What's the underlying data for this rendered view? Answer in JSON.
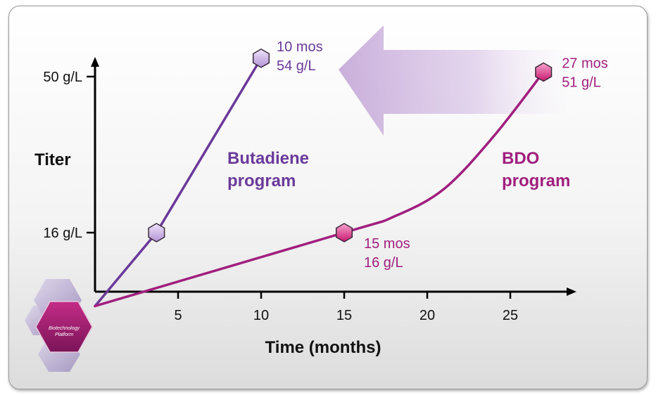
{
  "chart_data": {
    "type": "line",
    "xlabel": "Time (months)",
    "ylabel": "Titer",
    "xlim": [
      0,
      28
    ],
    "ylim": [
      0,
      60
    ],
    "x_ticks": [
      5,
      10,
      15,
      20,
      25
    ],
    "y_ticks": [
      {
        "value": 16,
        "label": "16 g/L"
      },
      {
        "value": 50,
        "label": "50 g/L"
      }
    ],
    "series": [
      {
        "name": "Butadiene program",
        "name_lines": [
          "Butadiene",
          "program"
        ],
        "color": "#6a3a9a",
        "marker_color": "#c9aee6",
        "points": [
          [
            0,
            0
          ],
          [
            3.7,
            16
          ],
          [
            10,
            54
          ]
        ],
        "markers": [
          [
            3.7,
            16
          ],
          [
            10,
            54
          ]
        ],
        "annotations": [
          {
            "at": [
              10,
              54
            ],
            "lines": [
              "10 mos",
              "54 g/L"
            ]
          }
        ]
      },
      {
        "name": "BDO program",
        "name_lines": [
          "BDO",
          "program"
        ],
        "color": "#a01f7e",
        "marker_color": "#e0308f",
        "points": [
          [
            0,
            0
          ],
          [
            15,
            16
          ],
          [
            18,
            19.5
          ],
          [
            21,
            25.5
          ],
          [
            24,
            37
          ],
          [
            27,
            51
          ]
        ],
        "markers": [
          [
            15,
            16
          ],
          [
            27,
            51
          ]
        ],
        "annotations": [
          {
            "at": [
              15,
              16
            ],
            "lines": [
              "15 mos",
              "16 g/L"
            ]
          },
          {
            "at": [
              27,
              51
            ],
            "lines": [
              "27 mos",
              "51 g/L"
            ]
          }
        ]
      }
    ]
  },
  "logo": {
    "lines": [
      "Biotechnology",
      "Platform"
    ]
  },
  "colors": {
    "arrow": "#a070c0",
    "axis": "#000000"
  }
}
